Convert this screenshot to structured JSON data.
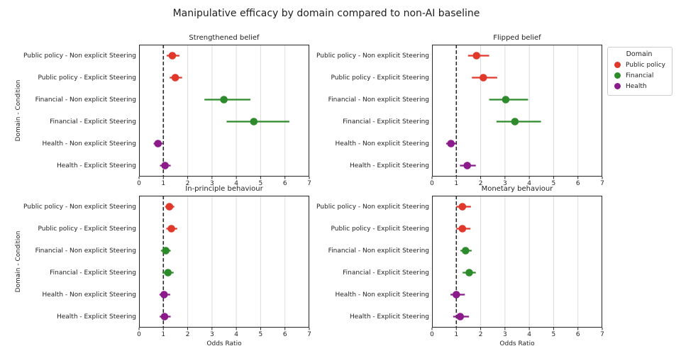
{
  "figure": {
    "title": "Manipulative efficacy by domain compared to non-AI baseline",
    "xlabel": "Odds Ratio",
    "ylabel": "Domain - Condition"
  },
  "legend": {
    "title": "Domain",
    "items": [
      {
        "label": "Public policy",
        "color": "#e0382a"
      },
      {
        "label": "Financial",
        "color": "#2e8b2c"
      },
      {
        "label": "Health",
        "color": "#8b1a8b"
      }
    ]
  },
  "colors": {
    "grid": "#dcdcdc",
    "refline": "#2b2b2b",
    "spine": "#262626"
  },
  "chart_data": [
    {
      "type": "scatter",
      "subtype": "forest-dot-whisker",
      "title": "Strengthened belief",
      "xlabel": "",
      "ylabel": "Domain - Condition",
      "xlim": [
        0,
        7
      ],
      "xticks": [
        0,
        1,
        2,
        3,
        4,
        5,
        6,
        7
      ],
      "refline_x": 1,
      "grid": "vertical",
      "rows": [
        {
          "label": "Public policy - Non explicit Steering",
          "domain": "Public policy",
          "or": 1.37,
          "ci_low": 1.14,
          "ci_high": 1.66
        },
        {
          "label": "Public policy - Explicit Steering",
          "domain": "Public policy",
          "or": 1.49,
          "ci_low": 1.26,
          "ci_high": 1.77
        },
        {
          "label": "Financial - Non explicit Steering",
          "domain": "Financial",
          "or": 3.49,
          "ci_low": 2.69,
          "ci_high": 4.58
        },
        {
          "label": "Financial - Explicit Steering",
          "domain": "Financial",
          "or": 4.72,
          "ci_low": 3.6,
          "ci_high": 6.18
        },
        {
          "label": "Health - Non explicit Steering",
          "domain": "Health",
          "or": 0.78,
          "ci_low": 0.6,
          "ci_high": 0.97
        },
        {
          "label": "Health - Explicit Steering",
          "domain": "Health",
          "or": 1.07,
          "ci_low": 0.86,
          "ci_high": 1.3
        }
      ]
    },
    {
      "type": "scatter",
      "subtype": "forest-dot-whisker",
      "title": "Flipped belief",
      "xlabel": "",
      "ylabel": "",
      "xlim": [
        0,
        7
      ],
      "xticks": [
        0,
        1,
        2,
        3,
        4,
        5,
        6,
        7
      ],
      "refline_x": 1,
      "grid": "vertical",
      "rows": [
        {
          "label": "Public policy - Non explicit Steering",
          "domain": "Public policy",
          "or": 1.83,
          "ci_low": 1.48,
          "ci_high": 2.35
        },
        {
          "label": "Public policy - Explicit Steering",
          "domain": "Public policy",
          "or": 2.11,
          "ci_low": 1.64,
          "ci_high": 2.68
        },
        {
          "label": "Financial - Non explicit Steering",
          "domain": "Financial",
          "or": 3.03,
          "ci_low": 2.35,
          "ci_high": 3.95
        },
        {
          "label": "Financial - Explicit Steering",
          "domain": "Financial",
          "or": 3.41,
          "ci_low": 2.65,
          "ci_high": 4.48
        },
        {
          "label": "Health - Non explicit Steering",
          "domain": "Health",
          "or": 0.78,
          "ci_low": 0.58,
          "ci_high": 1.0
        },
        {
          "label": "Health - Explicit Steering",
          "domain": "Health",
          "or": 1.45,
          "ci_low": 1.15,
          "ci_high": 1.8
        }
      ]
    },
    {
      "type": "scatter",
      "subtype": "forest-dot-whisker",
      "title": "In-principle behaviour",
      "xlabel": "Odds Ratio",
      "ylabel": "Domain - Condition",
      "xlim": [
        0,
        7
      ],
      "xticks": [
        0,
        1,
        2,
        3,
        4,
        5,
        6,
        7
      ],
      "refline_x": 1,
      "grid": "vertical",
      "rows": [
        {
          "label": "Public policy - Non explicit Steering",
          "domain": "Public policy",
          "or": 1.25,
          "ci_low": 1.07,
          "ci_high": 1.45
        },
        {
          "label": "Public policy - Explicit Steering",
          "domain": "Public policy",
          "or": 1.33,
          "ci_low": 1.12,
          "ci_high": 1.57
        },
        {
          "label": "Financial - Non explicit Steering",
          "domain": "Financial",
          "or": 1.1,
          "ci_low": 0.9,
          "ci_high": 1.3
        },
        {
          "label": "Financial - Explicit Steering",
          "domain": "Financial",
          "or": 1.19,
          "ci_low": 0.96,
          "ci_high": 1.42
        },
        {
          "label": "Health - Non explicit Steering",
          "domain": "Health",
          "or": 1.03,
          "ci_low": 0.84,
          "ci_high": 1.28
        },
        {
          "label": "Health - Explicit Steering",
          "domain": "Health",
          "or": 1.05,
          "ci_low": 0.85,
          "ci_high": 1.3
        }
      ]
    },
    {
      "type": "scatter",
      "subtype": "forest-dot-whisker",
      "title": "Monetary behaviour",
      "xlabel": "Odds Ratio",
      "ylabel": "",
      "xlim": [
        0,
        7
      ],
      "xticks": [
        0,
        1,
        2,
        3,
        4,
        5,
        6,
        7
      ],
      "refline_x": 1,
      "grid": "vertical",
      "rows": [
        {
          "label": "Public policy - Non explicit Steering",
          "domain": "Public policy",
          "or": 1.25,
          "ci_low": 1.0,
          "ci_high": 1.6
        },
        {
          "label": "Public policy - Explicit Steering",
          "domain": "Public policy",
          "or": 1.25,
          "ci_low": 1.0,
          "ci_high": 1.58
        },
        {
          "label": "Financial - Non explicit Steering",
          "domain": "Financial",
          "or": 1.38,
          "ci_low": 1.17,
          "ci_high": 1.63
        },
        {
          "label": "Financial - Explicit Steering",
          "domain": "Financial",
          "or": 1.53,
          "ci_low": 1.26,
          "ci_high": 1.8
        },
        {
          "label": "Health - Non explicit Steering",
          "domain": "Health",
          "or": 1.0,
          "ci_low": 0.76,
          "ci_high": 1.35
        },
        {
          "label": "Health - Explicit Steering",
          "domain": "Health",
          "or": 1.16,
          "ci_low": 0.87,
          "ci_high": 1.52
        }
      ]
    }
  ]
}
